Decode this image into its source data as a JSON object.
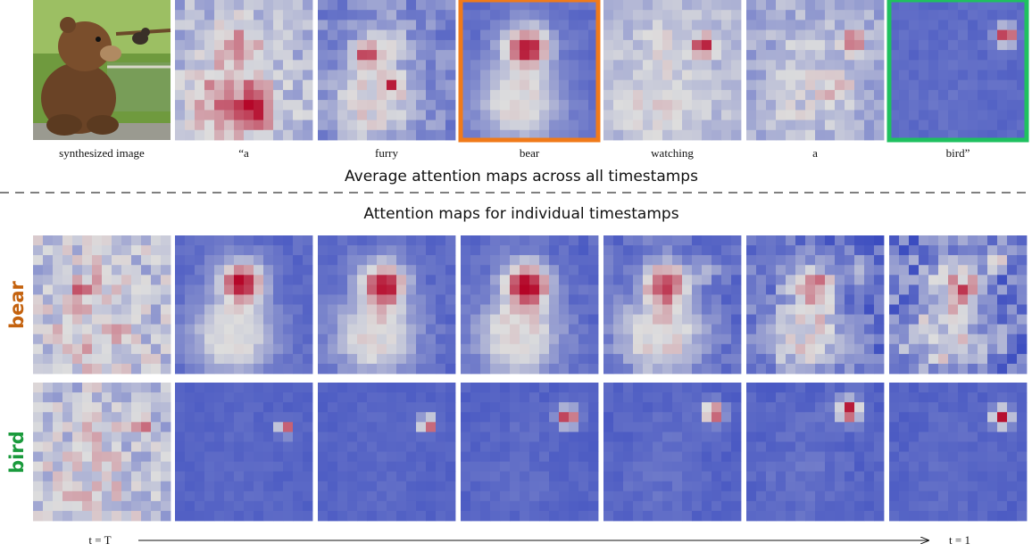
{
  "top_row": {
    "captions": [
      "synthesized image",
      "“a",
      "furry",
      "bear",
      "watching",
      "a",
      "bird”"
    ]
  },
  "headings": {
    "average": "Average attention maps across all timestamps",
    "individual": "Attention maps for individual  timestamps"
  },
  "rows": [
    {
      "label": "bear"
    },
    {
      "label": "bird"
    }
  ],
  "timeline": {
    "start": "t = T",
    "end": "t = 1"
  }
}
